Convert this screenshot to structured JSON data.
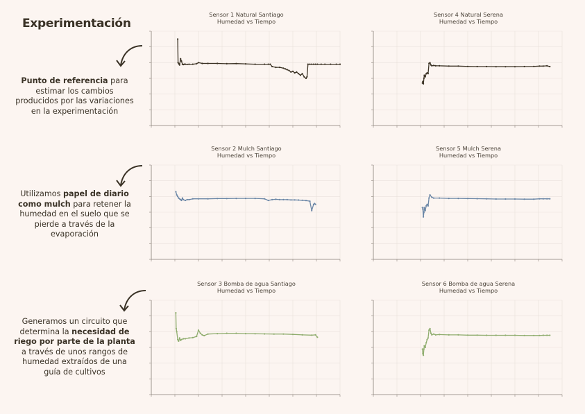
{
  "page": {
    "title": "Experimentación"
  },
  "notes": [
    {
      "parts": [
        {
          "text": "Punto de referencia",
          "bold": true
        },
        {
          "text": " para estimar los cambios producidos por las variaciones en la experimentación",
          "bold": false
        }
      ]
    },
    {
      "parts": [
        {
          "text": "Utilizamos ",
          "bold": false
        },
        {
          "text": "papel de diario como mulch",
          "bold": true
        },
        {
          "text": " para retener la humedad en el suelo que se pierde a través de la evaporación",
          "bold": false
        }
      ]
    },
    {
      "parts": [
        {
          "text": "Generamos un circuito que determina la ",
          "bold": false
        },
        {
          "text": "necesidad de riego por parte de la planta",
          "bold": true
        },
        {
          "text": " a través de unos rangos de humedad extraídos de una guía de cultivos",
          "bold": false
        }
      ]
    }
  ],
  "colors": {
    "natural": "#3b3224",
    "mulch": "#6a86a6",
    "bomba": "#8fad6e",
    "grid": "#e9e1dc",
    "axis": "#8a827a"
  },
  "chart_data": [
    {
      "type": "line",
      "title": "Sensor 1 Natural Santiago",
      "subtitle": "Humedad vs Tiempo",
      "color_key": "natural",
      "ylim": [
        0,
        6
      ],
      "xlim": [
        0,
        1
      ],
      "series": [
        {
          "x": [
            0.14,
            0.142,
            0.145,
            0.148,
            0.15,
            0.155,
            0.16,
            0.165,
            0.17,
            0.175,
            0.18,
            0.19,
            0.2,
            0.22,
            0.24,
            0.25,
            0.27,
            0.3,
            0.35,
            0.4,
            0.45,
            0.5,
            0.55,
            0.6,
            0.62,
            0.63,
            0.64,
            0.66,
            0.68,
            0.7,
            0.71,
            0.72,
            0.73,
            0.74,
            0.75,
            0.76,
            0.77,
            0.78,
            0.79,
            0.8,
            0.81,
            0.82,
            0.825,
            0.83,
            0.84,
            0.85,
            0.86,
            0.87,
            0.88,
            0.9,
            0.92,
            0.95,
            0.98,
            1.0
          ],
          "y": [
            5.5,
            4.0,
            3.95,
            3.9,
            3.85,
            4.25,
            4.1,
            3.9,
            3.88,
            3.9,
            3.9,
            3.89,
            3.9,
            3.9,
            3.93,
            4.0,
            3.95,
            3.95,
            3.95,
            3.93,
            3.94,
            3.92,
            3.9,
            3.9,
            3.9,
            3.9,
            3.75,
            3.7,
            3.7,
            3.65,
            3.6,
            3.55,
            3.5,
            3.4,
            3.45,
            3.35,
            3.4,
            3.3,
            3.2,
            3.3,
            3.1,
            3.0,
            3.1,
            3.9,
            3.9,
            3.9,
            3.9,
            3.9,
            3.9,
            3.9,
            3.9,
            3.9,
            3.9,
            3.9
          ]
        }
      ]
    },
    {
      "type": "line",
      "title": "Sensor 4 Natural Serena",
      "subtitle": "Humedad vs Tiempo",
      "color_key": "natural",
      "ylim": [
        0,
        6
      ],
      "xlim": [
        0,
        1
      ],
      "series": [
        {
          "x": [
            0.26,
            0.262,
            0.265,
            0.268,
            0.27,
            0.275,
            0.28,
            0.285,
            0.29,
            0.295,
            0.3,
            0.305,
            0.31,
            0.32,
            0.33,
            0.35,
            0.4,
            0.45,
            0.5,
            0.55,
            0.6,
            0.65,
            0.7,
            0.75,
            0.8,
            0.85,
            0.88,
            0.9,
            0.92,
            0.935
          ],
          "y": [
            2.7,
            2.8,
            2.65,
            3.0,
            3.2,
            3.1,
            3.3,
            3.35,
            3.3,
            3.95,
            4.0,
            3.85,
            3.8,
            3.82,
            3.8,
            3.8,
            3.78,
            3.78,
            3.76,
            3.75,
            3.75,
            3.74,
            3.74,
            3.74,
            3.75,
            3.76,
            3.78,
            3.78,
            3.8,
            3.75
          ]
        }
      ]
    },
    {
      "type": "line",
      "title": "Sensor 2 Mulch Santiago",
      "subtitle": "Humedad vs Tiempo",
      "color_key": "mulch",
      "ylim": [
        0,
        6
      ],
      "xlim": [
        0,
        1
      ],
      "series": [
        {
          "x": [
            0.13,
            0.135,
            0.14,
            0.145,
            0.15,
            0.155,
            0.16,
            0.165,
            0.17,
            0.18,
            0.19,
            0.2,
            0.22,
            0.25,
            0.3,
            0.35,
            0.4,
            0.45,
            0.5,
            0.55,
            0.6,
            0.62,
            0.64,
            0.66,
            0.68,
            0.7,
            0.72,
            0.74,
            0.76,
            0.78,
            0.8,
            0.82,
            0.84,
            0.85,
            0.86,
            0.865,
            0.87
          ],
          "y": [
            4.3,
            4.1,
            4.0,
            3.9,
            3.85,
            3.8,
            3.75,
            3.9,
            3.8,
            3.75,
            3.8,
            3.8,
            3.85,
            3.85,
            3.85,
            3.87,
            3.87,
            3.88,
            3.88,
            3.88,
            3.85,
            3.75,
            3.8,
            3.82,
            3.8,
            3.8,
            3.8,
            3.78,
            3.78,
            3.77,
            3.76,
            3.74,
            3.7,
            3.1,
            3.5,
            3.55,
            3.5
          ]
        }
      ]
    },
    {
      "type": "line",
      "title": "Sensor 5 Mulch Serena",
      "subtitle": "Humedad vs Tiempo",
      "color_key": "mulch",
      "ylim": [
        0,
        6
      ],
      "xlim": [
        0,
        1
      ],
      "series": [
        {
          "x": [
            0.26,
            0.262,
            0.265,
            0.268,
            0.27,
            0.275,
            0.28,
            0.285,
            0.29,
            0.295,
            0.3,
            0.31,
            0.32,
            0.35,
            0.4,
            0.45,
            0.5,
            0.55,
            0.6,
            0.65,
            0.7,
            0.75,
            0.8,
            0.85,
            0.88,
            0.9,
            0.92,
            0.935
          ],
          "y": [
            3.3,
            3.2,
            2.7,
            3.0,
            3.3,
            3.1,
            3.4,
            3.5,
            3.4,
            3.9,
            4.1,
            3.95,
            3.9,
            3.9,
            3.88,
            3.88,
            3.87,
            3.86,
            3.85,
            3.84,
            3.84,
            3.84,
            3.83,
            3.83,
            3.85,
            3.85,
            3.85,
            3.85
          ]
        }
      ]
    },
    {
      "type": "line",
      "title": "Sensor 3 Bomba de agua Santiago",
      "subtitle": "Humedad vs Tiempo",
      "color_key": "bomba",
      "ylim": [
        0,
        6
      ],
      "xlim": [
        0,
        1
      ],
      "series": [
        {
          "x": [
            0.13,
            0.132,
            0.135,
            0.14,
            0.145,
            0.15,
            0.155,
            0.16,
            0.17,
            0.18,
            0.2,
            0.22,
            0.24,
            0.25,
            0.26,
            0.27,
            0.28,
            0.3,
            0.35,
            0.4,
            0.45,
            0.5,
            0.55,
            0.6,
            0.65,
            0.7,
            0.75,
            0.8,
            0.85,
            0.87,
            0.88
          ],
          "y": [
            5.2,
            4.2,
            4.0,
            3.5,
            3.4,
            3.6,
            3.45,
            3.5,
            3.55,
            3.55,
            3.6,
            3.62,
            3.7,
            4.1,
            3.9,
            3.8,
            3.75,
            3.85,
            3.88,
            3.9,
            3.9,
            3.88,
            3.87,
            3.86,
            3.85,
            3.85,
            3.83,
            3.8,
            3.78,
            3.8,
            3.65
          ]
        }
      ]
    },
    {
      "type": "line",
      "title": "Sensor 6 Bomba de agua Serena",
      "subtitle": "Humedad vs Tiempo",
      "color_key": "bomba",
      "ylim": [
        0,
        6
      ],
      "xlim": [
        0,
        1
      ],
      "series": [
        {
          "x": [
            0.26,
            0.262,
            0.265,
            0.268,
            0.27,
            0.275,
            0.28,
            0.285,
            0.29,
            0.295,
            0.3,
            0.305,
            0.31,
            0.32,
            0.33,
            0.35,
            0.4,
            0.45,
            0.5,
            0.55,
            0.6,
            0.65,
            0.7,
            0.75,
            0.8,
            0.85,
            0.88,
            0.9,
            0.92,
            0.935
          ],
          "y": [
            2.9,
            2.6,
            2.5,
            2.9,
            3.1,
            3.0,
            3.3,
            3.5,
            3.6,
            4.1,
            4.2,
            3.9,
            3.8,
            3.85,
            3.8,
            3.82,
            3.8,
            3.8,
            3.78,
            3.78,
            3.77,
            3.77,
            3.77,
            3.77,
            3.76,
            3.76,
            3.76,
            3.77,
            3.77,
            3.77
          ]
        }
      ]
    }
  ]
}
